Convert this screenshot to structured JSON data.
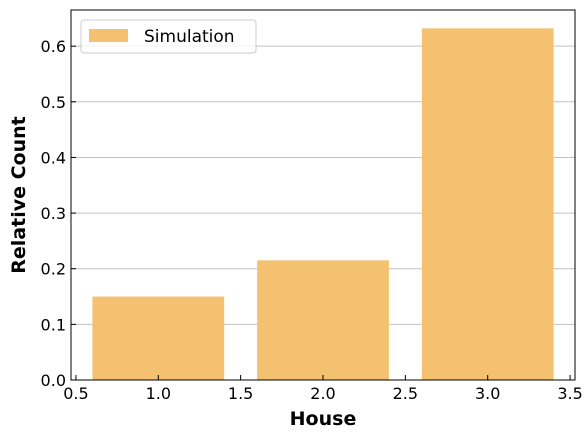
{
  "chart_data": {
    "type": "bar",
    "title": "",
    "xlabel": "House",
    "ylabel": "Relative Count",
    "xlim": [
      0.47,
      3.53
    ],
    "ylim": [
      0,
      0.665
    ],
    "bar_width": 0.8,
    "x_ticks": [
      0.5,
      1.0,
      1.5,
      2.0,
      2.5,
      3.0,
      3.5
    ],
    "x_tick_labels": [
      "0.5",
      "1.0",
      "1.5",
      "2.0",
      "2.5",
      "3.0",
      "3.5"
    ],
    "y_ticks": [
      0.0,
      0.1,
      0.2,
      0.3,
      0.4,
      0.5,
      0.6
    ],
    "y_tick_labels": [
      "0.0",
      "0.1",
      "0.2",
      "0.3",
      "0.4",
      "0.5",
      "0.6"
    ],
    "grid": "y-major",
    "legend_position": "top-left",
    "colors": {
      "bar": "#f3c16f",
      "grid": "#c2c2c2",
      "axes": "#000000"
    },
    "series": [
      {
        "name": "Simulation",
        "x": [
          1,
          2,
          3
        ],
        "values": [
          0.15,
          0.215,
          0.632
        ]
      }
    ]
  }
}
